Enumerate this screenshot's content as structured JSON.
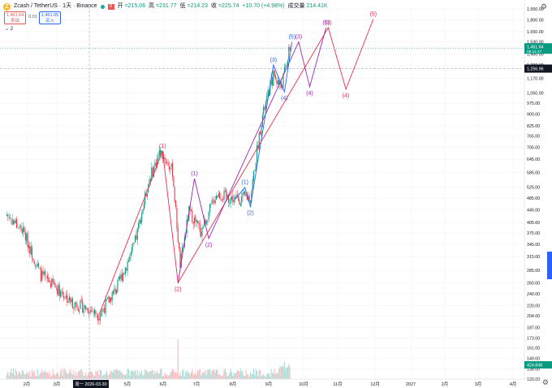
{
  "header": {
    "symbol": "Zcash / TetherUS · 1天 · Binance",
    "coin_letter": "Z",
    "open_label": "开",
    "open": "=215.06",
    "high_label": "高",
    "high": "=231.77",
    "low_label": "低",
    "low": "=214.23",
    "close_label": "收",
    "close": "=225.74",
    "change": "+10.70 (+4.98%)",
    "volume_label": "成交量",
    "volume": "214.41K",
    "flag_text": "R"
  },
  "trade": {
    "sell_price": "1,461.64",
    "sell_label": "卖出",
    "spread": "0.01",
    "buy_price": "1,461.65",
    "buy_label": "买入",
    "indicator_count": "2"
  },
  "price_axis": {
    "ticks": [
      "1,950.00",
      "1,800.00",
      "1,650.00",
      "1,530.00",
      "1,400.00",
      "1,290.00",
      "1,170.00",
      "1,050.00",
      "975.00",
      "900.00",
      "825.00",
      "765.00",
      "705.00",
      "645.00",
      "585.00",
      "525.00",
      "485.00",
      "445.00",
      "405.00",
      "375.00",
      "345.00",
      "315.00",
      "285.00",
      "260.00",
      "240.00",
      "220.00",
      "204.00",
      "187.00",
      "173.00",
      "161.00",
      "149.00",
      "138.00",
      "128.00"
    ],
    "last_price": "1,461.64",
    "countdown": "05:11:47",
    "crosshair_price": "1,256.96",
    "volume_value": "424.84K"
  },
  "time_axis": {
    "ticks": [
      "2月",
      "3月",
      "5月",
      "6月",
      "7月",
      "8月",
      "9月",
      "10月",
      "11月",
      "12月",
      "2027",
      "2月",
      "3月",
      "4月"
    ],
    "crosshair_date": "周一 2026-03-30"
  },
  "chart_data": {
    "type": "candlestick",
    "symbol": "ZECUSDT",
    "interval": "1D",
    "scale": "log",
    "y_ticks": [
      1950,
      1800,
      1650,
      1530,
      1400,
      1290,
      1170,
      1050,
      975,
      900,
      825,
      765,
      705,
      645,
      585,
      525,
      485,
      445,
      405,
      375,
      345,
      315,
      285,
      260,
      240,
      220,
      204,
      187,
      173,
      161,
      149,
      138,
      128
    ],
    "x_ticks": [
      "2月",
      "3月",
      "5月",
      "6月",
      "7月",
      "8月",
      "9月",
      "10月",
      "11月",
      "12月",
      "2027",
      "2月",
      "3月",
      "4月"
    ],
    "price_trend_approx": [
      {
        "date": "2026-01-05",
        "close": 430
      },
      {
        "date": "2026-01-20",
        "close": 380
      },
      {
        "date": "2026-02-05",
        "close": 275
      },
      {
        "date": "2026-02-20",
        "close": 250
      },
      {
        "date": "2026-03-05",
        "close": 225
      },
      {
        "date": "2026-03-20",
        "close": 215
      },
      {
        "date": "2026-03-30",
        "close": 205
      },
      {
        "date": "2026-04-15",
        "close": 250
      },
      {
        "date": "2026-05-01",
        "close": 340
      },
      {
        "date": "2026-05-15",
        "close": 560
      },
      {
        "date": "2026-05-25",
        "close": 685
      },
      {
        "date": "2026-06-05",
        "close": 590
      },
      {
        "date": "2026-06-12",
        "close": 295
      },
      {
        "date": "2026-06-20",
        "close": 440
      },
      {
        "date": "2026-07-01",
        "close": 380
      },
      {
        "date": "2026-07-15",
        "close": 500
      },
      {
        "date": "2026-08-01",
        "close": 480
      },
      {
        "date": "2026-08-15",
        "close": 490
      },
      {
        "date": "2026-08-25",
        "close": 860
      },
      {
        "date": "2026-09-05",
        "close": 1200
      },
      {
        "date": "2026-09-12",
        "close": 1100
      },
      {
        "date": "2026-09-20",
        "close": 1461.64
      }
    ],
    "wave_counts": {
      "red": [
        {
          "label": "(1)",
          "date": "2026-05-27",
          "price": 685
        },
        {
          "label": "(2)",
          "date": "2026-06-10",
          "price": 260
        },
        {
          "label": "(3)",
          "date": "2026-10-25",
          "price": 1700
        },
        {
          "label": "(4)",
          "date": "2026-11-10",
          "price": 1080
        },
        {
          "label": "(5)",
          "date": "2026-12-05",
          "price": 1810
        }
      ],
      "purple": [
        {
          "label": "(1)",
          "date": "2026-06-25",
          "price": 560
        },
        {
          "label": "(2)",
          "date": "2026-07-08",
          "price": 360
        },
        {
          "label": "(3)",
          "date": "2026-09-28",
          "price": 1530
        },
        {
          "label": "(4)",
          "date": "2026-10-08",
          "price": 1100
        },
        {
          "label": "(5)",
          "date": "2026-10-23",
          "price": 1700
        }
      ],
      "blue": [
        {
          "label": "(1)",
          "date": "2026-08-10",
          "price": 525
        },
        {
          "label": "(2)",
          "date": "2026-08-15",
          "price": 455
        },
        {
          "label": "(3)",
          "date": "2026-09-05",
          "price": 1290
        },
        {
          "label": "(4)",
          "date": "2026-09-15",
          "price": 1060
        },
        {
          "label": "(5)",
          "date": "2026-09-22",
          "price": 1530
        }
      ]
    },
    "last_price": 1461.64,
    "crosshair_price": 1256.96,
    "current_volume": "424.84K"
  },
  "colors": {
    "up": "#089981",
    "down": "#f23645",
    "red_wave": "#ef2b4b",
    "purple_wave": "#9c27b0",
    "blue_wave": "#2962ff",
    "grid": "#f0f3fa"
  }
}
